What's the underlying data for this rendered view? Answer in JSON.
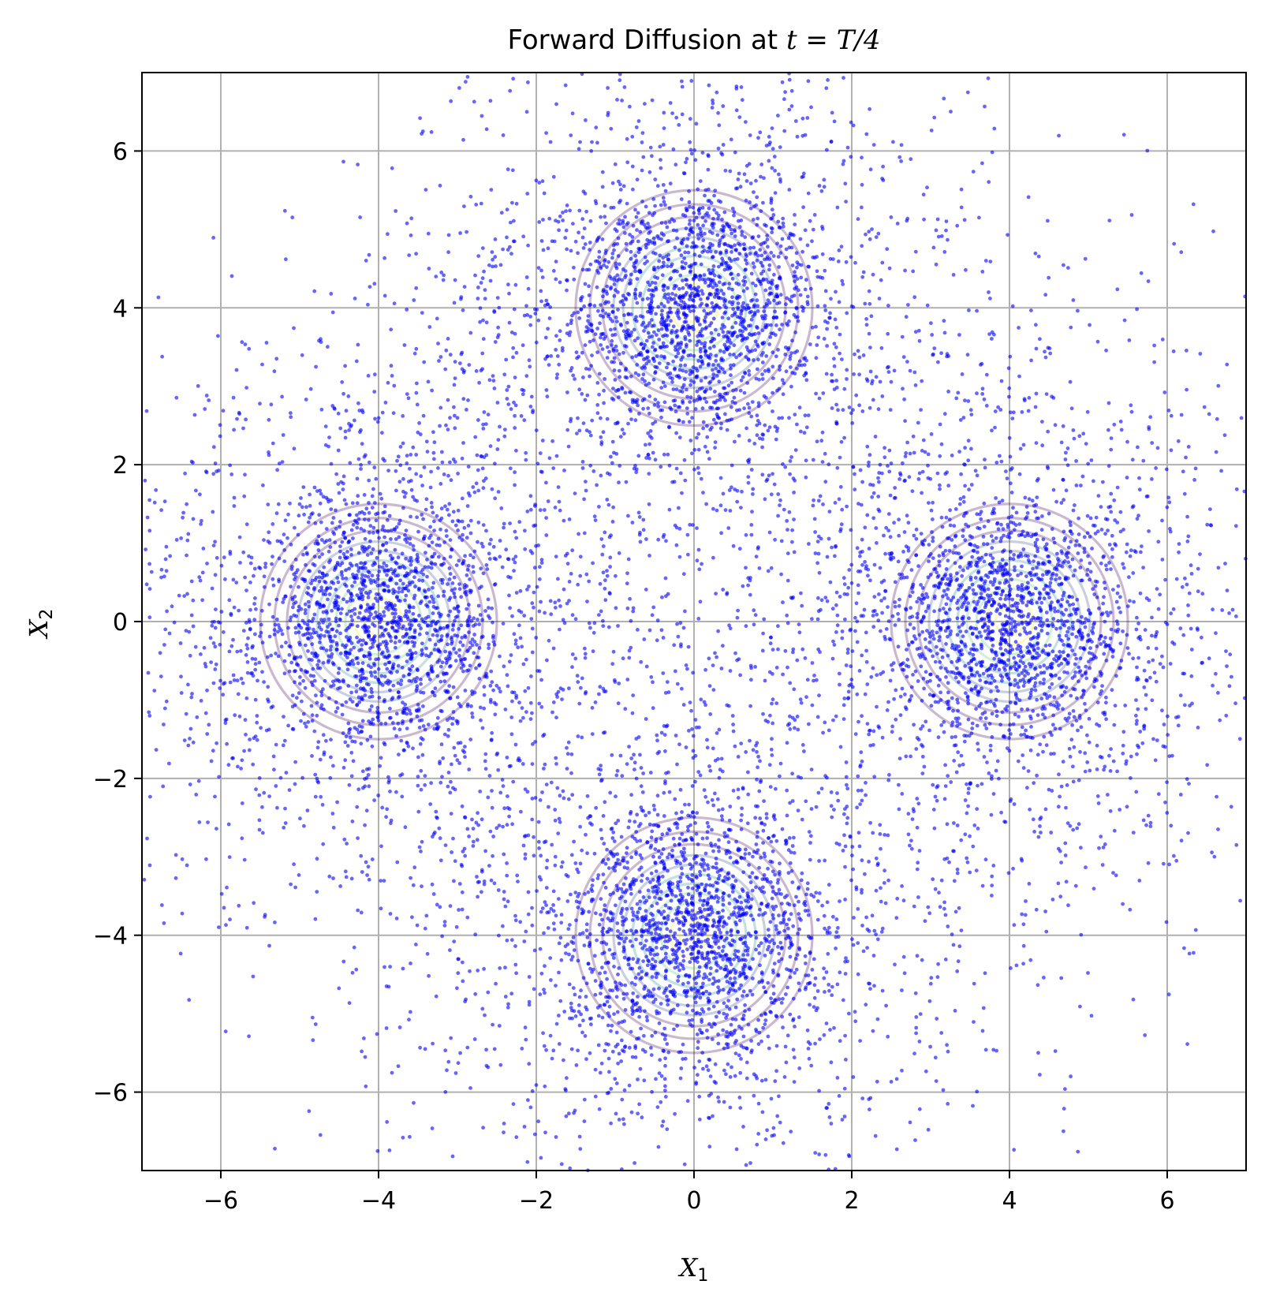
{
  "chart_data": {
    "type": "scatter",
    "title_prefix": "Forward Diffusion at ",
    "title_math_t": "t",
    "title_math_eq": " = ",
    "title_math_rhs": "T/4",
    "xlabel": "X",
    "xlabel_sub": "1",
    "ylabel": "X",
    "ylabel_sub": "2",
    "xlim": [
      -7,
      7
    ],
    "ylim": [
      -7,
      7
    ],
    "xticks": [
      -6,
      -4,
      -2,
      0,
      2,
      4,
      6
    ],
    "yticks": [
      -6,
      -4,
      -2,
      0,
      2,
      4,
      6
    ],
    "xtick_labels": [
      "−6",
      "−4",
      "−2",
      "0",
      "2",
      "4",
      "6"
    ],
    "ytick_labels": [
      "−6",
      "−4",
      "−2",
      "0",
      "2",
      "4",
      "6"
    ],
    "grid": true,
    "point_color": "#0000ff",
    "mixture_centers": [
      [
        0,
        4
      ],
      [
        -4,
        0
      ],
      [
        4,
        0
      ],
      [
        0,
        -4
      ]
    ],
    "cluster_core_std": 0.75,
    "diffuse_std": 1.9,
    "contour_colors": [
      "#440154",
      "#3b528b",
      "#21918c",
      "#5ec962",
      "#fde725"
    ]
  }
}
